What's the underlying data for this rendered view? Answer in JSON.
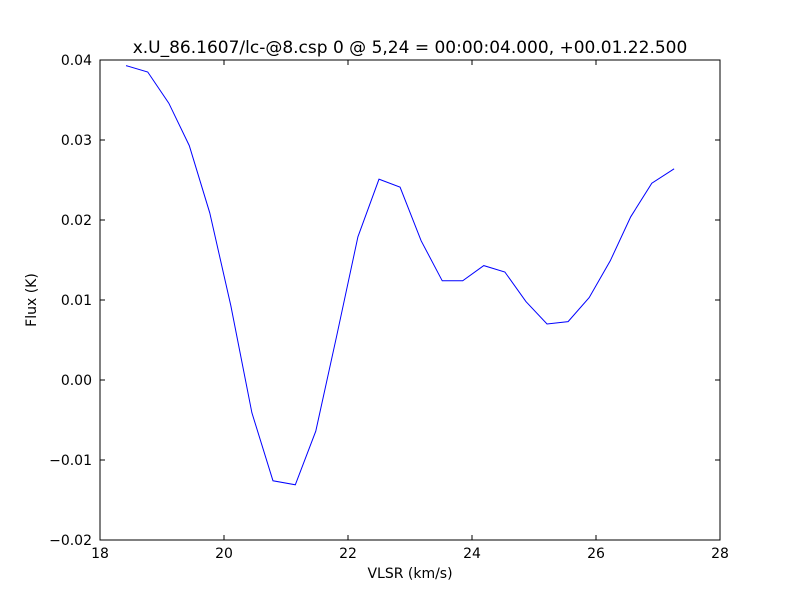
{
  "chart_data": {
    "type": "line",
    "title": "x.U_86.1607/lc-@8.csp 0 @ 5,24 = 00:00:04.000, +00.01.22.500",
    "xlabel": "VLSR (km/s)",
    "ylabel": "Flux (K)",
    "x": [
      18.42,
      18.77,
      19.11,
      19.44,
      19.77,
      20.11,
      20.45,
      20.79,
      21.15,
      21.48,
      21.82,
      22.16,
      22.5,
      22.84,
      23.18,
      23.52,
      23.85,
      24.19,
      24.53,
      24.87,
      25.21,
      25.55,
      25.89,
      26.23,
      26.56,
      26.9,
      27.26
    ],
    "series": [
      {
        "color": "#0000ff",
        "values": [
          0.0393,
          0.0385,
          0.0346,
          0.0293,
          0.0209,
          0.0093,
          -0.0041,
          -0.0126,
          -0.0131,
          -0.0064,
          0.0056,
          0.0179,
          0.0251,
          0.0241,
          0.0174,
          0.0124,
          0.0124,
          0.0143,
          0.0135,
          0.0098,
          0.007,
          0.0073,
          0.0103,
          0.0149,
          0.0204,
          0.0246,
          0.0264
        ]
      }
    ],
    "xlim": [
      18,
      28
    ],
    "xticks": [
      18,
      20,
      22,
      24,
      26,
      28
    ],
    "ylim": [
      -0.02,
      0.04
    ],
    "yticks": [
      {
        "value": -0.02,
        "label": "−0.02"
      },
      {
        "value": -0.01,
        "label": "−0.01"
      },
      {
        "value": 0,
        "label": "0.00"
      },
      0.01,
      0.02,
      0.03,
      0.04
    ],
    "grid": false
  }
}
